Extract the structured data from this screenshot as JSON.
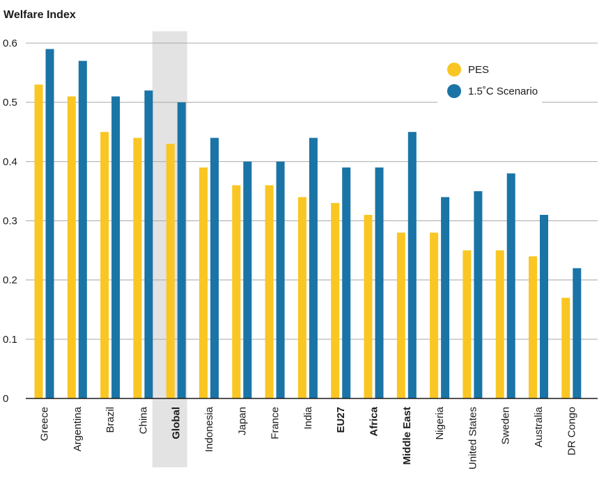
{
  "chart_data": {
    "type": "bar",
    "title": "Welfare Index",
    "xlabel": "",
    "ylabel": "",
    "ylim": [
      0,
      0.6
    ],
    "yticks": [
      "0",
      "0.1",
      "0.2",
      "0.3",
      "0.4",
      "0.5",
      "0.6"
    ],
    "grid": true,
    "legend_position": "top-right",
    "highlighted_category": "Global",
    "bold_categories": [
      "Global",
      "EU27",
      "Africa",
      "Middle East"
    ],
    "categories": [
      "Greece",
      "Argentina",
      "Brazil",
      "China",
      "Global",
      "Indonesia",
      "Japan",
      "France",
      "India",
      "EU27",
      "Africa",
      "Middle East",
      "Nigeria",
      "United States",
      "Sweden",
      "Australia",
      "DR Congo"
    ],
    "series": [
      {
        "name": "PES",
        "color": "#f9c623",
        "values": [
          0.53,
          0.51,
          0.45,
          0.44,
          0.43,
          0.39,
          0.36,
          0.36,
          0.34,
          0.33,
          0.31,
          0.28,
          0.28,
          0.25,
          0.25,
          0.24,
          0.17
        ]
      },
      {
        "name": "1.5˚C Scenario",
        "color": "#1a74a6",
        "values": [
          0.59,
          0.57,
          0.51,
          0.52,
          0.5,
          0.44,
          0.4,
          0.4,
          0.44,
          0.39,
          0.39,
          0.45,
          0.34,
          0.35,
          0.38,
          0.31,
          0.22
        ]
      }
    ]
  }
}
